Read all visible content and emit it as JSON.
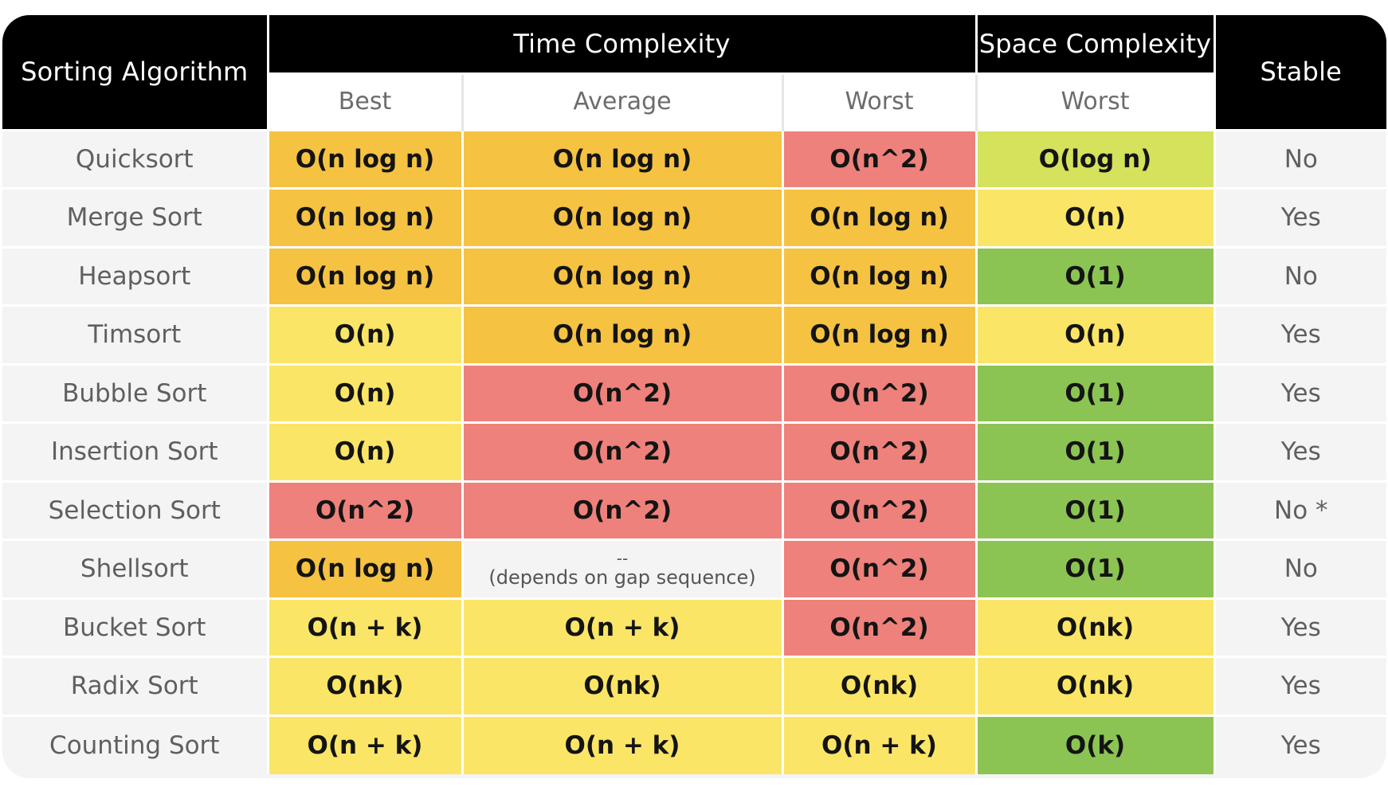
{
  "header": {
    "algorithm": "Sorting Algorithm",
    "time_complexity": "Time Complexity",
    "space_complexity": "Space Complexity",
    "stable": "Stable",
    "best": "Best",
    "average": "Average",
    "worst": "Worst",
    "space_worst": "Worst"
  },
  "colors": {
    "orange": "#f5c242",
    "yellow": "#fbe566",
    "red": "#ee817b",
    "green": "#8bc453",
    "lime": "#d4e25c",
    "header_bg": "#000000"
  },
  "rows": [
    {
      "name": "Quicksort",
      "best": "O(n log n)",
      "average": "O(n log n)",
      "worst": "O(n^2)",
      "space": "O(log n)",
      "stable": "No"
    },
    {
      "name": "Merge Sort",
      "best": "O(n log n)",
      "average": "O(n log n)",
      "worst": "O(n log n)",
      "space": "O(n)",
      "stable": "Yes"
    },
    {
      "name": "Heapsort",
      "best": "O(n log n)",
      "average": "O(n log n)",
      "worst": "O(n log n)",
      "space": "O(1)",
      "stable": "No"
    },
    {
      "name": "Timsort",
      "best": "O(n)",
      "average": "O(n log n)",
      "worst": "O(n log n)",
      "space": "O(n)",
      "stable": "Yes"
    },
    {
      "name": "Bubble Sort",
      "best": "O(n)",
      "average": "O(n^2)",
      "worst": "O(n^2)",
      "space": "O(1)",
      "stable": "Yes"
    },
    {
      "name": "Insertion Sort",
      "best": "O(n)",
      "average": "O(n^2)",
      "worst": "O(n^2)",
      "space": "O(1)",
      "stable": "Yes"
    },
    {
      "name": "Selection Sort",
      "best": "O(n^2)",
      "average": "O(n^2)",
      "worst": "O(n^2)",
      "space": "O(1)",
      "stable": "No *"
    },
    {
      "name": "Shellsort",
      "best": "O(n log n)",
      "average_dash": "--",
      "average_note": "(depends on gap sequence)",
      "worst": "O(n^2)",
      "space": "O(1)",
      "stable": "No"
    },
    {
      "name": "Bucket Sort",
      "best": "O(n + k)",
      "average": "O(n + k)",
      "worst": "O(n^2)",
      "space": "O(nk)",
      "stable": "Yes"
    },
    {
      "name": "Radix Sort",
      "best": "O(nk)",
      "average": "O(nk)",
      "worst": "O(nk)",
      "space": "O(nk)",
      "stable": "Yes"
    },
    {
      "name": "Counting Sort",
      "best": "O(n + k)",
      "average": "O(n + k)",
      "worst": "O(n + k)",
      "space": "O(k)",
      "stable": "Yes"
    }
  ]
}
